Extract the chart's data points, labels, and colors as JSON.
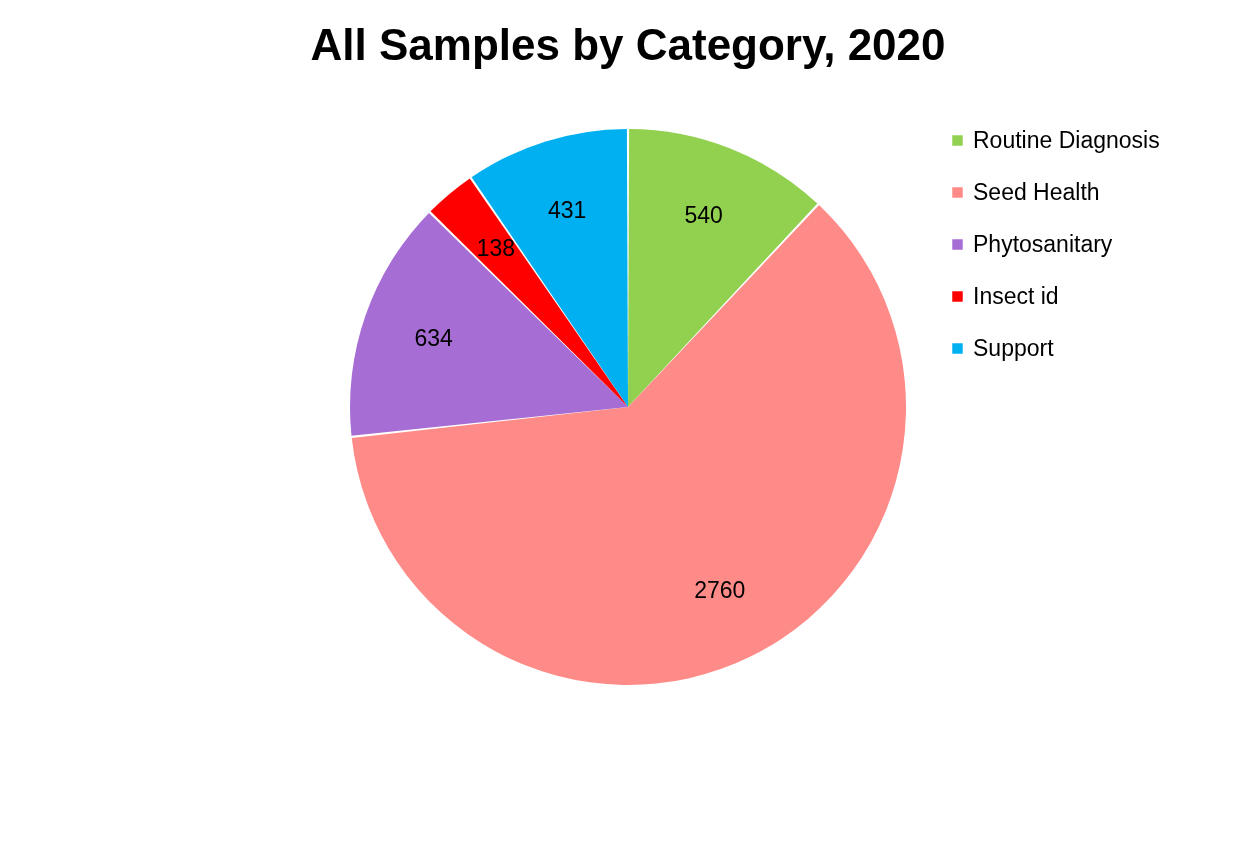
{
  "chart_data": {
    "type": "pie",
    "title": "All Samples by Category, 2020",
    "categories": [
      "Routine Diagnosis",
      "Seed Health",
      "Phytosanitary",
      "Insect id",
      "Support"
    ],
    "values": [
      540,
      2760,
      634,
      138,
      431
    ],
    "colors": [
      "#92d050",
      "#ff8b88",
      "#a66dd4",
      "#ff0000",
      "#00b0f0"
    ],
    "data_labels": true,
    "legend": "right"
  }
}
